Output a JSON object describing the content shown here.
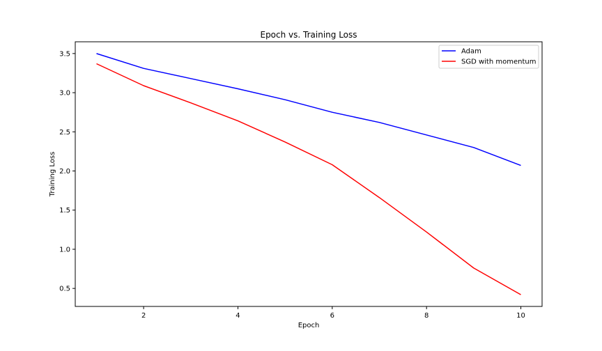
{
  "chart_data": {
    "type": "line",
    "title": "Epoch vs. Training Loss",
    "xlabel": "Epoch",
    "ylabel": "Training Loss",
    "xlim": [
      0.55,
      10.45
    ],
    "ylim": [
      0.27,
      3.65
    ],
    "xticks": [
      2,
      4,
      6,
      8,
      10
    ],
    "xtick_labels": [
      "2",
      "4",
      "6",
      "8",
      "10"
    ],
    "yticks": [
      0.5,
      1.0,
      1.5,
      2.0,
      2.5,
      3.0,
      3.5
    ],
    "ytick_labels": [
      "0.5",
      "1.0",
      "1.5",
      "2.0",
      "2.5",
      "3.0",
      "3.5"
    ],
    "grid": false,
    "legend_position": "top-right",
    "x": [
      1,
      2,
      3,
      4,
      5,
      6,
      7,
      8,
      9,
      10
    ],
    "series": [
      {
        "name": "Adam",
        "color": "#0000ff",
        "values": [
          3.5,
          3.31,
          3.18,
          3.05,
          2.91,
          2.75,
          2.62,
          2.46,
          2.3,
          2.07
        ]
      },
      {
        "name": "SGD with momentum",
        "color": "#ff0000",
        "values": [
          3.37,
          3.09,
          2.87,
          2.64,
          2.37,
          2.08,
          1.66,
          1.22,
          0.76,
          0.42
        ]
      }
    ]
  }
}
